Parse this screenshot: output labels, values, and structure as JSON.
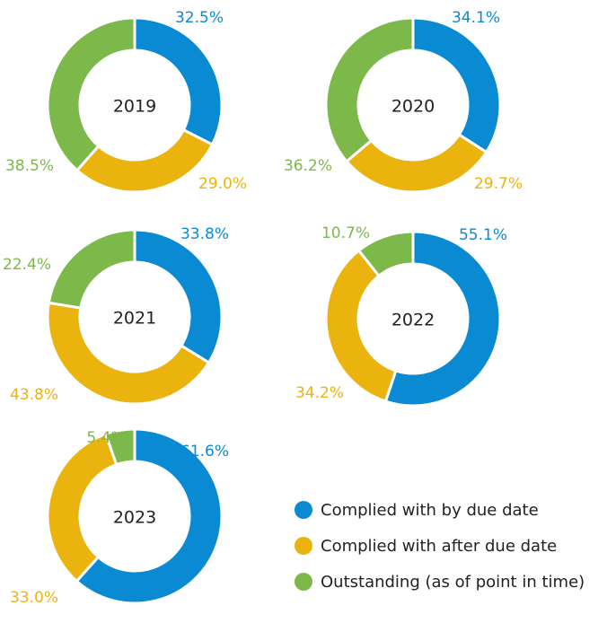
{
  "chart_data": [
    {
      "type": "donut",
      "title": "2019",
      "values": [
        32.5,
        29.0,
        38.5
      ],
      "value_labels": [
        "32.5%",
        "29.0%",
        "38.5%"
      ]
    },
    {
      "type": "donut",
      "title": "2020",
      "values": [
        34.1,
        29.7,
        36.2
      ],
      "value_labels": [
        "34.1%",
        "29.7%",
        "36.2%"
      ]
    },
    {
      "type": "donut",
      "title": "2021",
      "values": [
        33.8,
        43.8,
        22.4
      ],
      "value_labels": [
        "33.8%",
        "43.8%",
        "22.4%"
      ]
    },
    {
      "type": "donut",
      "title": "2022",
      "values": [
        55.1,
        34.2,
        10.7
      ],
      "value_labels": [
        "55.1%",
        "34.2%",
        "10.7%"
      ]
    },
    {
      "type": "donut",
      "title": "2023",
      "values": [
        61.6,
        33.0,
        5.4
      ],
      "value_labels": [
        "61.6%",
        "33.0%",
        "5.4%"
      ]
    }
  ],
  "legend": {
    "labels": [
      "Complied with by due date",
      "Complied with after due date",
      "Outstanding (as of point in time)"
    ],
    "colors": [
      "#0a8ad2",
      "#ebb30e",
      "#7cb94a"
    ]
  }
}
